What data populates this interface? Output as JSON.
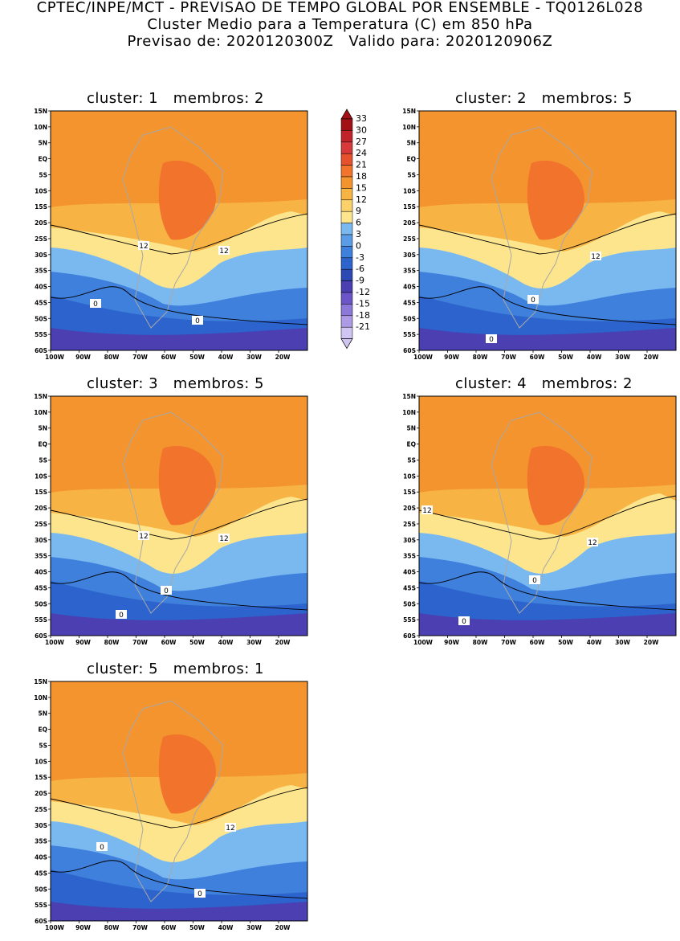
{
  "header": {
    "line1": "CPTEC/INPE/MCT - PREVISAO DE TEMPO GLOBAL POR ENSEMBLE - TQ0126L028",
    "line2": "Cluster Medio para a Temperatura (C) em 850 hPa",
    "line3": "Previsao de: 2020120300Z   Valido para: 2020120906Z"
  },
  "panels": [
    {
      "title": "cluster: 1   membros: 2",
      "contour_labels": [
        "12",
        "12",
        "0",
        "0"
      ]
    },
    {
      "title": "cluster: 2   membros: 5",
      "contour_labels": [
        "12",
        "0",
        "0"
      ]
    },
    {
      "title": "cluster: 3   membros: 5",
      "contour_labels": [
        "12",
        "12",
        "0",
        "0"
      ]
    },
    {
      "title": "cluster: 4   membros: 2",
      "contour_labels": [
        "12",
        "12",
        "0",
        "0"
      ]
    },
    {
      "title": "cluster: 5   membros: 1",
      "contour_labels": [
        "12",
        "0",
        "0"
      ]
    }
  ],
  "axes": {
    "lat_ticks": [
      "15N",
      "10N",
      "5N",
      "EQ",
      "5S",
      "10S",
      "15S",
      "20S",
      "25S",
      "30S",
      "35S",
      "40S",
      "45S",
      "50S",
      "55S",
      "60S"
    ],
    "lon_ticks": [
      "100W",
      "90W",
      "80W",
      "70W",
      "60W",
      "50W",
      "40W",
      "30W",
      "20W"
    ]
  },
  "colorbar": {
    "levels": [
      "33",
      "30",
      "27",
      "24",
      "21",
      "18",
      "15",
      "12",
      "9",
      "6",
      "3",
      "0",
      "-3",
      "-6",
      "-9",
      "-12",
      "-15",
      "-18",
      "-21"
    ],
    "colors": [
      "#a11014",
      "#c0242a",
      "#d7383a",
      "#e8512e",
      "#f1732c",
      "#f4942f",
      "#f7b445",
      "#fad16a",
      "#fce58d",
      "#7ab8f0",
      "#5a9ce6",
      "#3f80dc",
      "#2c63cc",
      "#2d49b4",
      "#4b3fb2",
      "#6a56c8",
      "#8b78d8",
      "#ad9be6",
      "#d0c5f2"
    ]
  },
  "colors": {
    "field_warm_core": "#f1732c",
    "field_warm": "#f4942f",
    "field_orange": "#f7b445",
    "field_yellow": "#fce58d",
    "field_lightblue": "#7ab8f0",
    "field_blue": "#3f80dc",
    "field_deepblue": "#2c63cc",
    "field_violet": "#4b3fb2",
    "land_outline": "#a8a8a8"
  }
}
